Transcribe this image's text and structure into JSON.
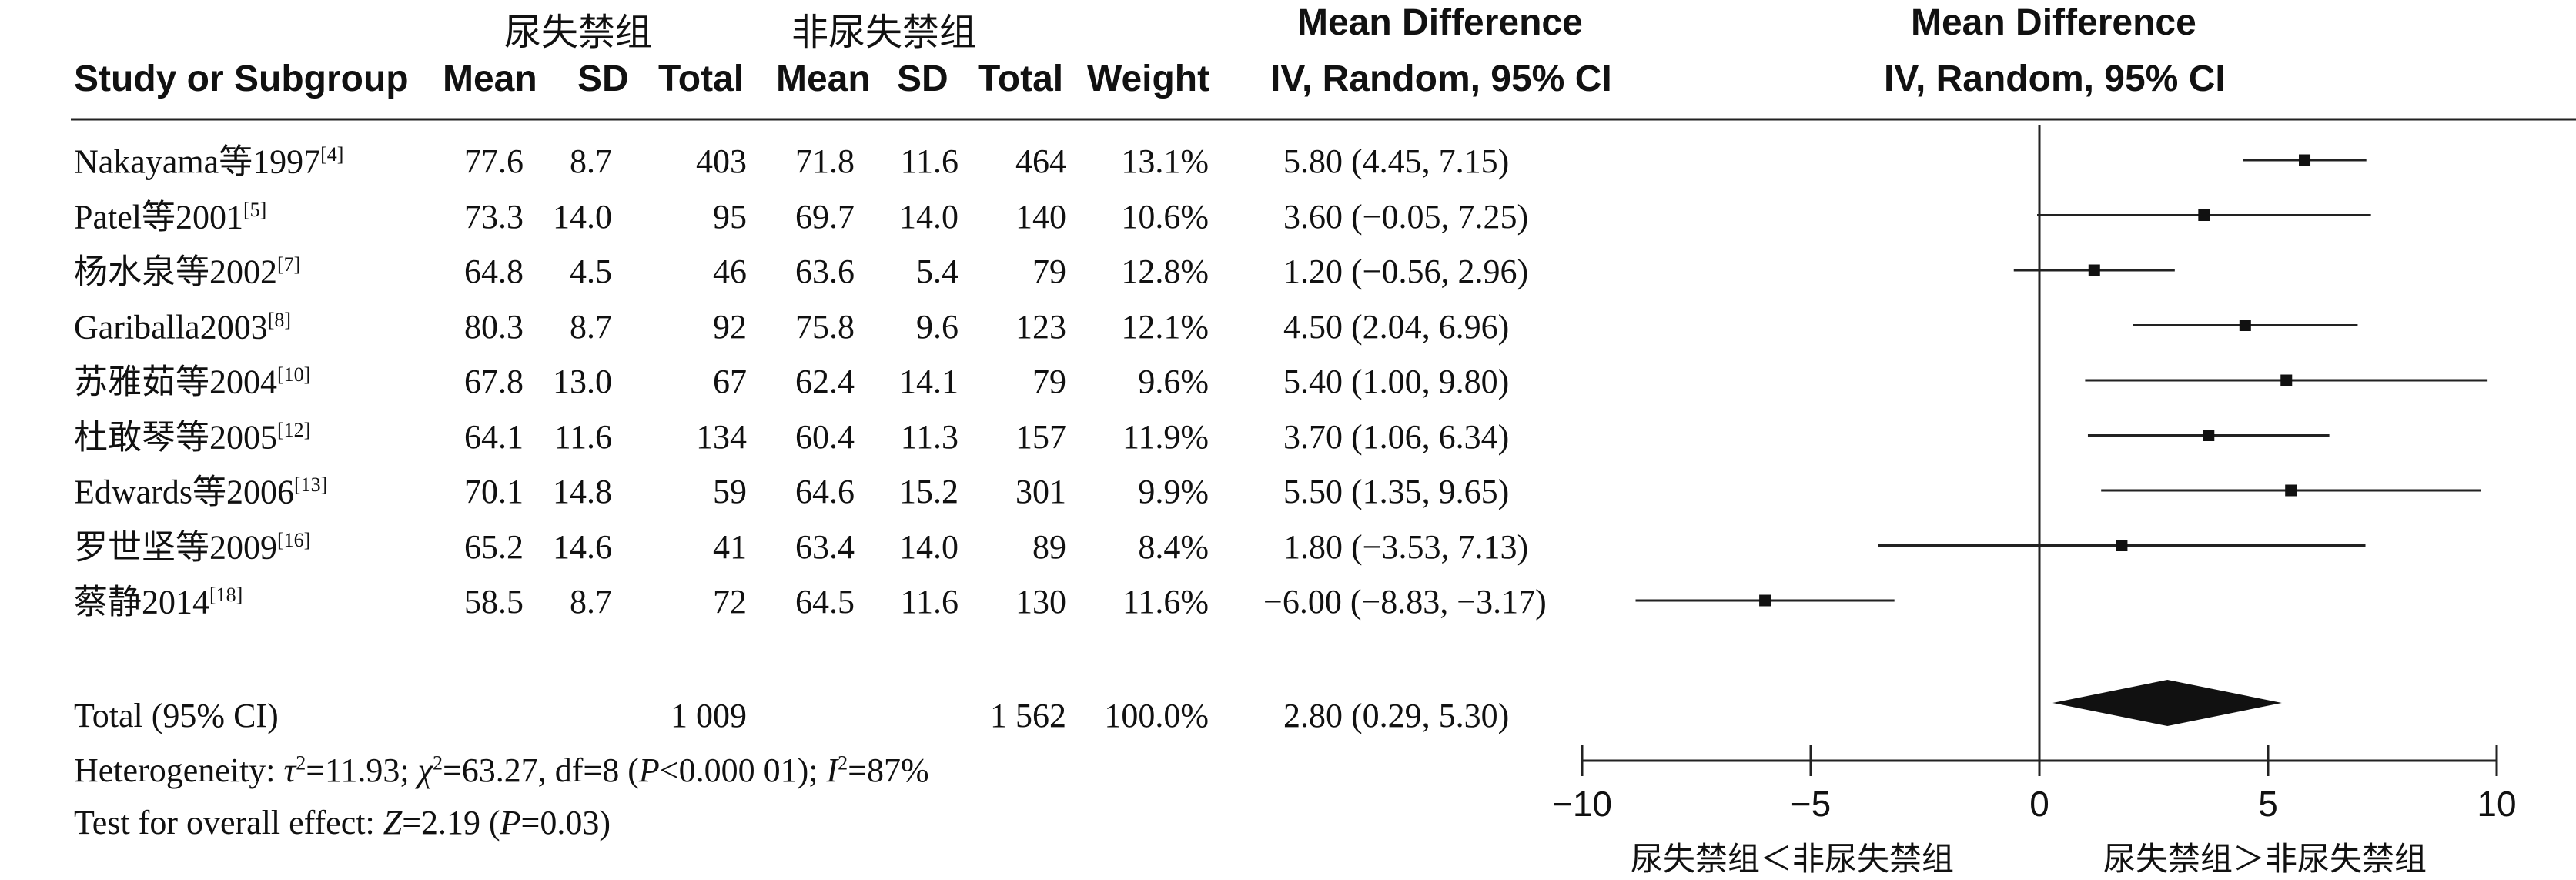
{
  "header": {
    "group1": "尿失禁组",
    "group2": "非尿失禁组",
    "study": "Study or Subgroup",
    "mean": "Mean",
    "sd": "SD",
    "total": "Total",
    "weight": "Weight",
    "md_title": "Mean Difference",
    "md_sub": "IV, Random, 95% CI"
  },
  "footer": {
    "total_label": "Total (95% CI)",
    "total1": "1 009",
    "total2": "1 562",
    "total_weight": "100.0%",
    "total_ci": "2.80 (0.29, 5.30)",
    "heterogeneity": "Heterogeneity: τ²=11.93; χ²=63.27, df=8 (P<0.000 01); I²=87%",
    "overall": "Test for overall effect: Z=2.19 (P=0.03)"
  },
  "axis": {
    "left_label": "尿失禁组＜非尿失禁组",
    "right_label": "尿失禁组＞非尿失禁组"
  },
  "chart_data": {
    "type": "forest",
    "xlim": [
      -10,
      10
    ],
    "xticks": [
      -10,
      -5,
      0,
      5,
      10
    ],
    "xtick_labels": [
      "−10",
      "−5",
      "0",
      "5",
      "10"
    ],
    "studies": [
      {
        "study": "Nakayama等1997",
        "ref": "[4]",
        "mean1": "77.6",
        "sd1": "8.7",
        "n1": "403",
        "mean2": "71.8",
        "sd2": "11.6",
        "n2": "464",
        "weight": "13.1%",
        "ci_text": "5.80 (4.45, 7.15)",
        "md": 5.8,
        "lo": 4.45,
        "hi": 7.15
      },
      {
        "study": "Patel等2001",
        "ref": "[5]",
        "mean1": "73.3",
        "sd1": "14.0",
        "n1": "95",
        "mean2": "69.7",
        "sd2": "14.0",
        "n2": "140",
        "weight": "10.6%",
        "ci_text": "3.60 (−0.05, 7.25)",
        "md": 3.6,
        "lo": -0.05,
        "hi": 7.25
      },
      {
        "study": "杨水泉等2002",
        "ref": "[7]",
        "mean1": "64.8",
        "sd1": "4.5",
        "n1": "46",
        "mean2": "63.6",
        "sd2": "5.4",
        "n2": "79",
        "weight": "12.8%",
        "ci_text": "1.20 (−0.56, 2.96)",
        "md": 1.2,
        "lo": -0.56,
        "hi": 2.96
      },
      {
        "study": "Gariballa2003",
        "ref": "[8]",
        "mean1": "80.3",
        "sd1": "8.7",
        "n1": "92",
        "mean2": "75.8",
        "sd2": "9.6",
        "n2": "123",
        "weight": "12.1%",
        "ci_text": "4.50 (2.04, 6.96)",
        "md": 4.5,
        "lo": 2.04,
        "hi": 6.96
      },
      {
        "study": "苏雅茹等2004",
        "ref": "[10]",
        "mean1": "67.8",
        "sd1": "13.0",
        "n1": "67",
        "mean2": "62.4",
        "sd2": "14.1",
        "n2": "79",
        "weight": "9.6%",
        "ci_text": "5.40 (1.00, 9.80)",
        "md": 5.4,
        "lo": 1.0,
        "hi": 9.8
      },
      {
        "study": "杜敢琴等2005",
        "ref": "[12]",
        "mean1": "64.1",
        "sd1": "11.6",
        "n1": "134",
        "mean2": "60.4",
        "sd2": "11.3",
        "n2": "157",
        "weight": "11.9%",
        "ci_text": "3.70 (1.06, 6.34)",
        "md": 3.7,
        "lo": 1.06,
        "hi": 6.34
      },
      {
        "study": "Edwards等2006",
        "ref": "[13]",
        "mean1": "70.1",
        "sd1": "14.8",
        "n1": "59",
        "mean2": "64.6",
        "sd2": "15.2",
        "n2": "301",
        "weight": "9.9%",
        "ci_text": "5.50 (1.35, 9.65)",
        "md": 5.5,
        "lo": 1.35,
        "hi": 9.65
      },
      {
        "study": "罗世坚等2009",
        "ref": "[16]",
        "mean1": "65.2",
        "sd1": "14.6",
        "n1": "41",
        "mean2": "63.4",
        "sd2": "14.0",
        "n2": "89",
        "weight": "8.4%",
        "ci_text": "1.80 (−3.53, 7.13)",
        "md": 1.8,
        "lo": -3.53,
        "hi": 7.13
      },
      {
        "study": "蔡静2014",
        "ref": "[18]",
        "mean1": "58.5",
        "sd1": "8.7",
        "n1": "72",
        "mean2": "64.5",
        "sd2": "11.6",
        "n2": "130",
        "weight": "11.6%",
        "ci_text": "−6.00 (−8.83, −3.17)",
        "md": -6.0,
        "lo": -8.83,
        "hi": -3.17
      }
    ],
    "pooled": {
      "md": 2.8,
      "lo": 0.29,
      "hi": 5.3
    }
  }
}
